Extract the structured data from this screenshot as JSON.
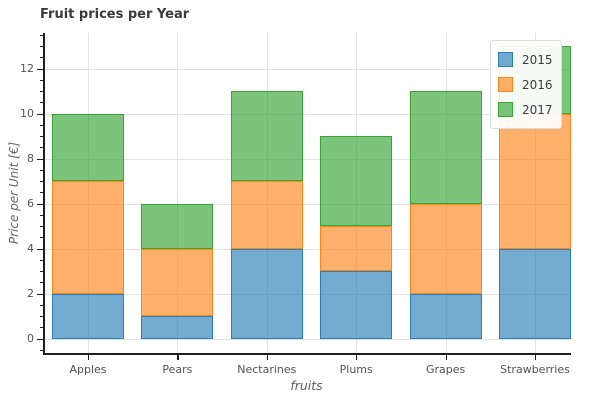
{
  "title": "Fruit prices per Year",
  "chart_data": {
    "type": "bar",
    "stacked": true,
    "title": "Fruit prices per Year",
    "xlabel": "fruits",
    "ylabel": "Price per Unit [€]",
    "categories": [
      "Apples",
      "Pears",
      "Nectarines",
      "Plums",
      "Grapes",
      "Strawberries"
    ],
    "series": [
      {
        "name": "2015",
        "color": "#1f77b4",
        "values": [
          2,
          1,
          4,
          3,
          2,
          4
        ]
      },
      {
        "name": "2016",
        "color": "#ff7f0e",
        "values": [
          5,
          3,
          3,
          2,
          4,
          6
        ]
      },
      {
        "name": "2017",
        "color": "#2ca02c",
        "values": [
          3,
          2,
          4,
          4,
          5,
          3
        ]
      }
    ],
    "stack_tops": {
      "Apples": [
        2,
        7,
        10
      ],
      "Pears": [
        1,
        4,
        6
      ],
      "Nectarines": [
        4,
        7,
        11
      ],
      "Plums": [
        3,
        5,
        9
      ],
      "Grapes": [
        2,
        6,
        11
      ],
      "Strawberries": [
        4,
        10,
        13
      ]
    },
    "yticks": [
      0,
      2,
      4,
      6,
      8,
      10,
      12
    ],
    "ylim": [
      -0.65,
      13.58
    ],
    "minor_tick_step": 0.5,
    "grid": true,
    "legend_position": "top-right",
    "legend_entries": [
      "2015",
      "2016",
      "2017"
    ]
  },
  "colors": {
    "series_fill_alpha": 0.62,
    "series_edge_alpha": 0.85,
    "grid": "#e3e3e3",
    "spine": "#1f1f1f",
    "tick_label": "#525252",
    "title": "#3a3a3a",
    "axis_label": "#666666",
    "legend_bg": "#fffffe",
    "legend_border": "#dcdcdc"
  }
}
